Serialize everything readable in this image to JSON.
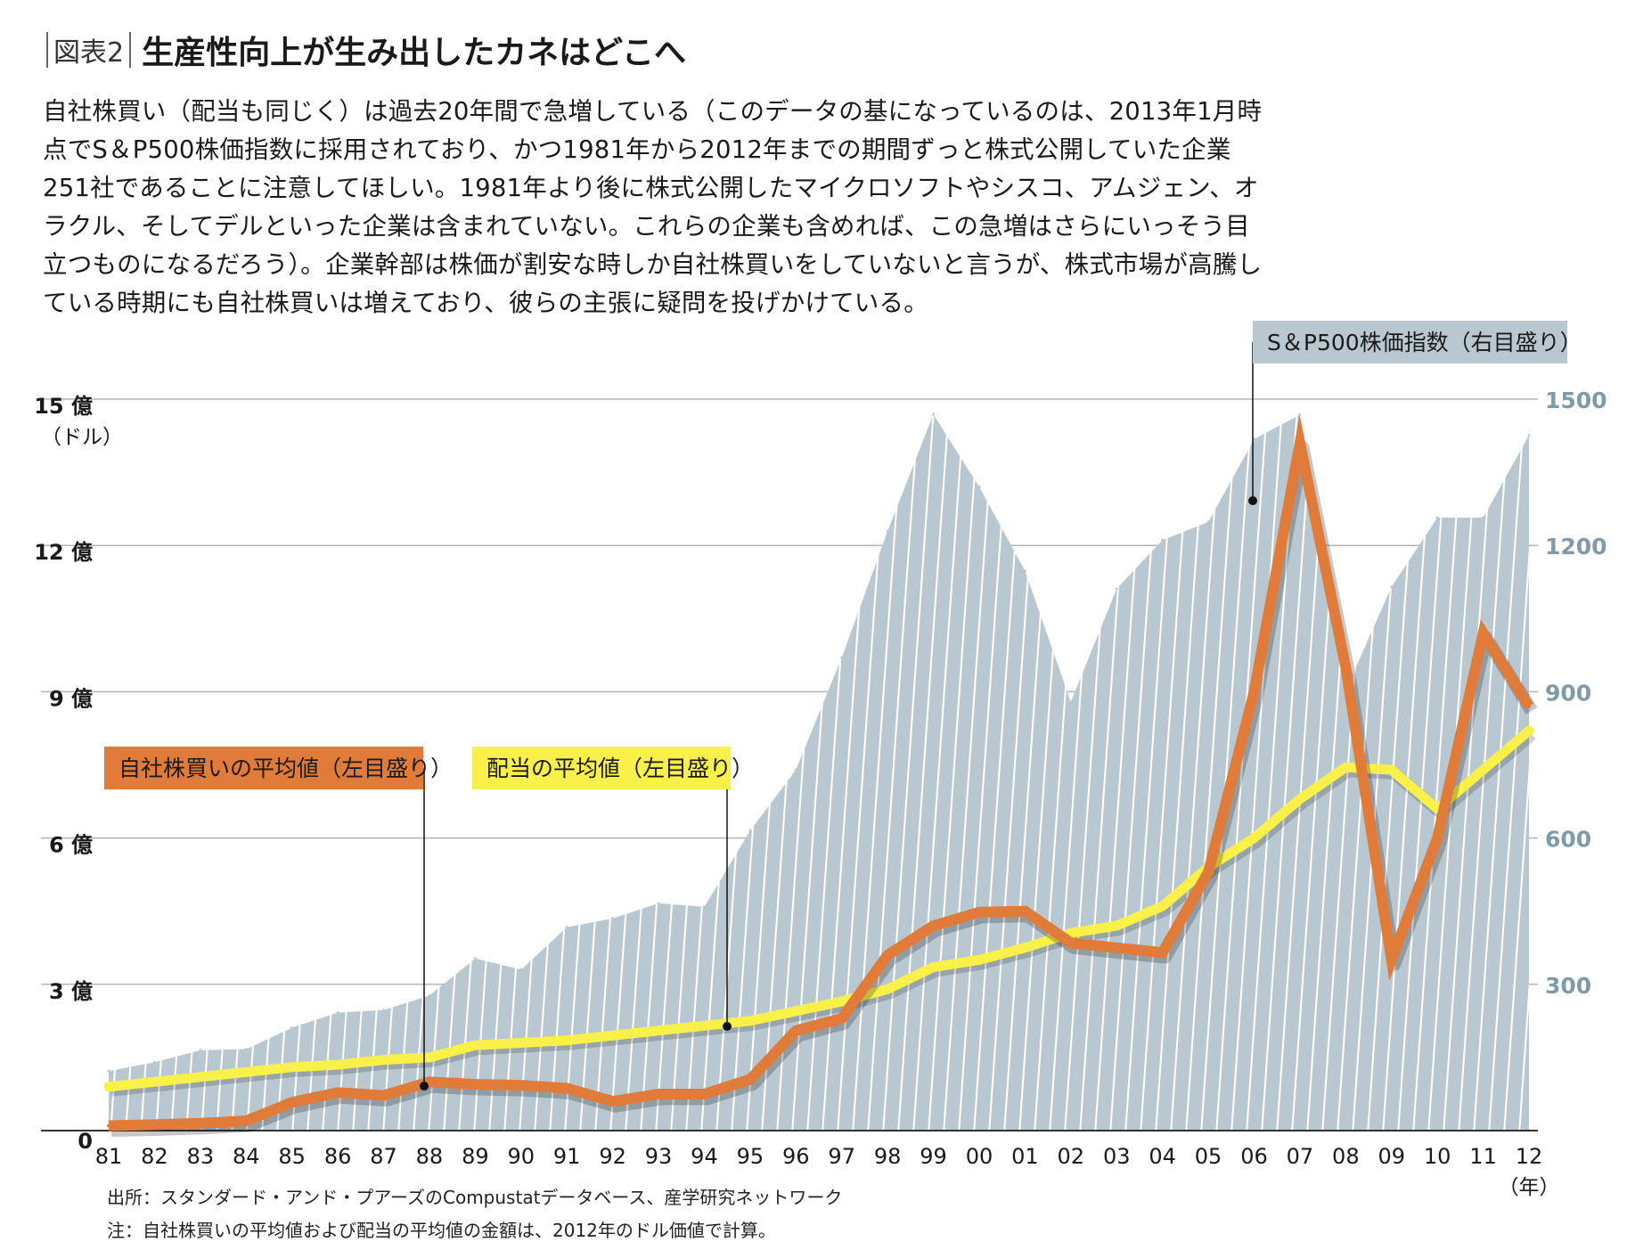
{
  "figure_label": "図表2",
  "title": "生産性向上が生み出したカネはどこへ",
  "description": "自社株買い（配当も同じく）は過去20年間で急増している（このデータの基になっているのは、2013年1月時点でS＆P500株価指数に採用されており、かつ1981年から2012年までの期間ずっと株式公開していた企業251社であることに注意してほしい。1981年より後に株式公開したマイクロソフトやシスコ、アムジェン、オラクル、そしてデルといった企業は含まれていない。これらの企業も含めれば、この急増はさらにいっそう目立つものになるだろう）。企業幹部は株価が割安な時しか自社株買いをしていないと言うが、株式市場が高騰している時期にも自社株買いは増えており、彼らの主張に疑問を投げかけている。",
  "source_note": "出所：スタンダード・アンド・プアーズのCompustatデータベース、産学研究ネットワーク",
  "footnote": "注：自社株買いの平均値および配当の平均値の金額は、2012年のドル価値で計算。",
  "colors": {
    "buyback": "#e07b39",
    "dividend": "#f9f04a",
    "sp500_fill": "#b9c8d0",
    "left_axis_text": "#1a1a1a",
    "right_axis_text": "#7f9aa8"
  },
  "chart_data": {
    "type": "line",
    "x": [
      "81",
      "82",
      "83",
      "84",
      "85",
      "86",
      "87",
      "88",
      "89",
      "90",
      "91",
      "92",
      "93",
      "94",
      "95",
      "96",
      "97",
      "98",
      "99",
      "00",
      "01",
      "02",
      "03",
      "04",
      "05",
      "06",
      "07",
      "08",
      "09",
      "10",
      "11",
      "12"
    ],
    "x_unit_label": "（年）",
    "left_axis": {
      "unit_label": "（ドル）",
      "ylim": [
        0,
        15
      ],
      "ticks": [
        0,
        3,
        6,
        9,
        12,
        15
      ],
      "tick_labels": [
        "0",
        "3 億",
        "6 億",
        "9 億",
        "12 億",
        "15 億"
      ]
    },
    "right_axis": {
      "ylim": [
        0,
        1500
      ],
      "ticks": [
        300,
        600,
        900,
        1200,
        1500
      ],
      "tick_labels": [
        "300",
        "600",
        "900",
        "1200",
        "1500"
      ]
    },
    "series": [
      {
        "name": "S＆P500株価指数（右目盛り）",
        "type": "area",
        "axis": "right",
        "values": [
          122,
          140,
          165,
          167,
          211,
          242,
          247,
          277,
          353,
          330,
          417,
          435,
          466,
          459,
          615,
          740,
          970,
          1229,
          1469,
          1320,
          1148,
          879,
          1111,
          1211,
          1248,
          1418,
          1468,
          903,
          1115,
          1257,
          1257,
          1426
        ]
      },
      {
        "name": "自社株買いの平均値（左目盛り）",
        "type": "line",
        "axis": "left",
        "values": [
          0.1,
          0.12,
          0.15,
          0.2,
          0.58,
          0.78,
          0.72,
          1.0,
          0.95,
          0.93,
          0.87,
          0.6,
          0.75,
          0.75,
          1.05,
          2.05,
          2.3,
          3.6,
          4.2,
          4.48,
          4.5,
          3.85,
          3.75,
          3.65,
          5.3,
          9.0,
          14.1,
          9.5,
          3.5,
          6.0,
          10.2,
          8.7
        ]
      },
      {
        "name": "配当の平均値（左目盛り）",
        "type": "line",
        "axis": "left",
        "values": [
          0.9,
          1.0,
          1.1,
          1.2,
          1.3,
          1.35,
          1.45,
          1.5,
          1.75,
          1.8,
          1.85,
          1.95,
          2.05,
          2.15,
          2.25,
          2.45,
          2.65,
          2.9,
          3.35,
          3.5,
          3.75,
          4.05,
          4.2,
          4.6,
          5.4,
          6.0,
          6.8,
          7.45,
          7.4,
          6.6,
          7.4,
          8.2
        ]
      }
    ],
    "legend": [
      {
        "label": "自社株買いの平均値（左目盛り）",
        "color": "#e07b39",
        "text_color": "#1a1a1a"
      },
      {
        "label": "配当の平均値（左目盛り）",
        "color": "#f9f04a",
        "text_color": "#1a1a1a"
      },
      {
        "label": "S＆P500株価指数（右目盛り）",
        "color": "#b9c8d0",
        "text_color": "#1a1a1a"
      }
    ],
    "grid": true
  }
}
